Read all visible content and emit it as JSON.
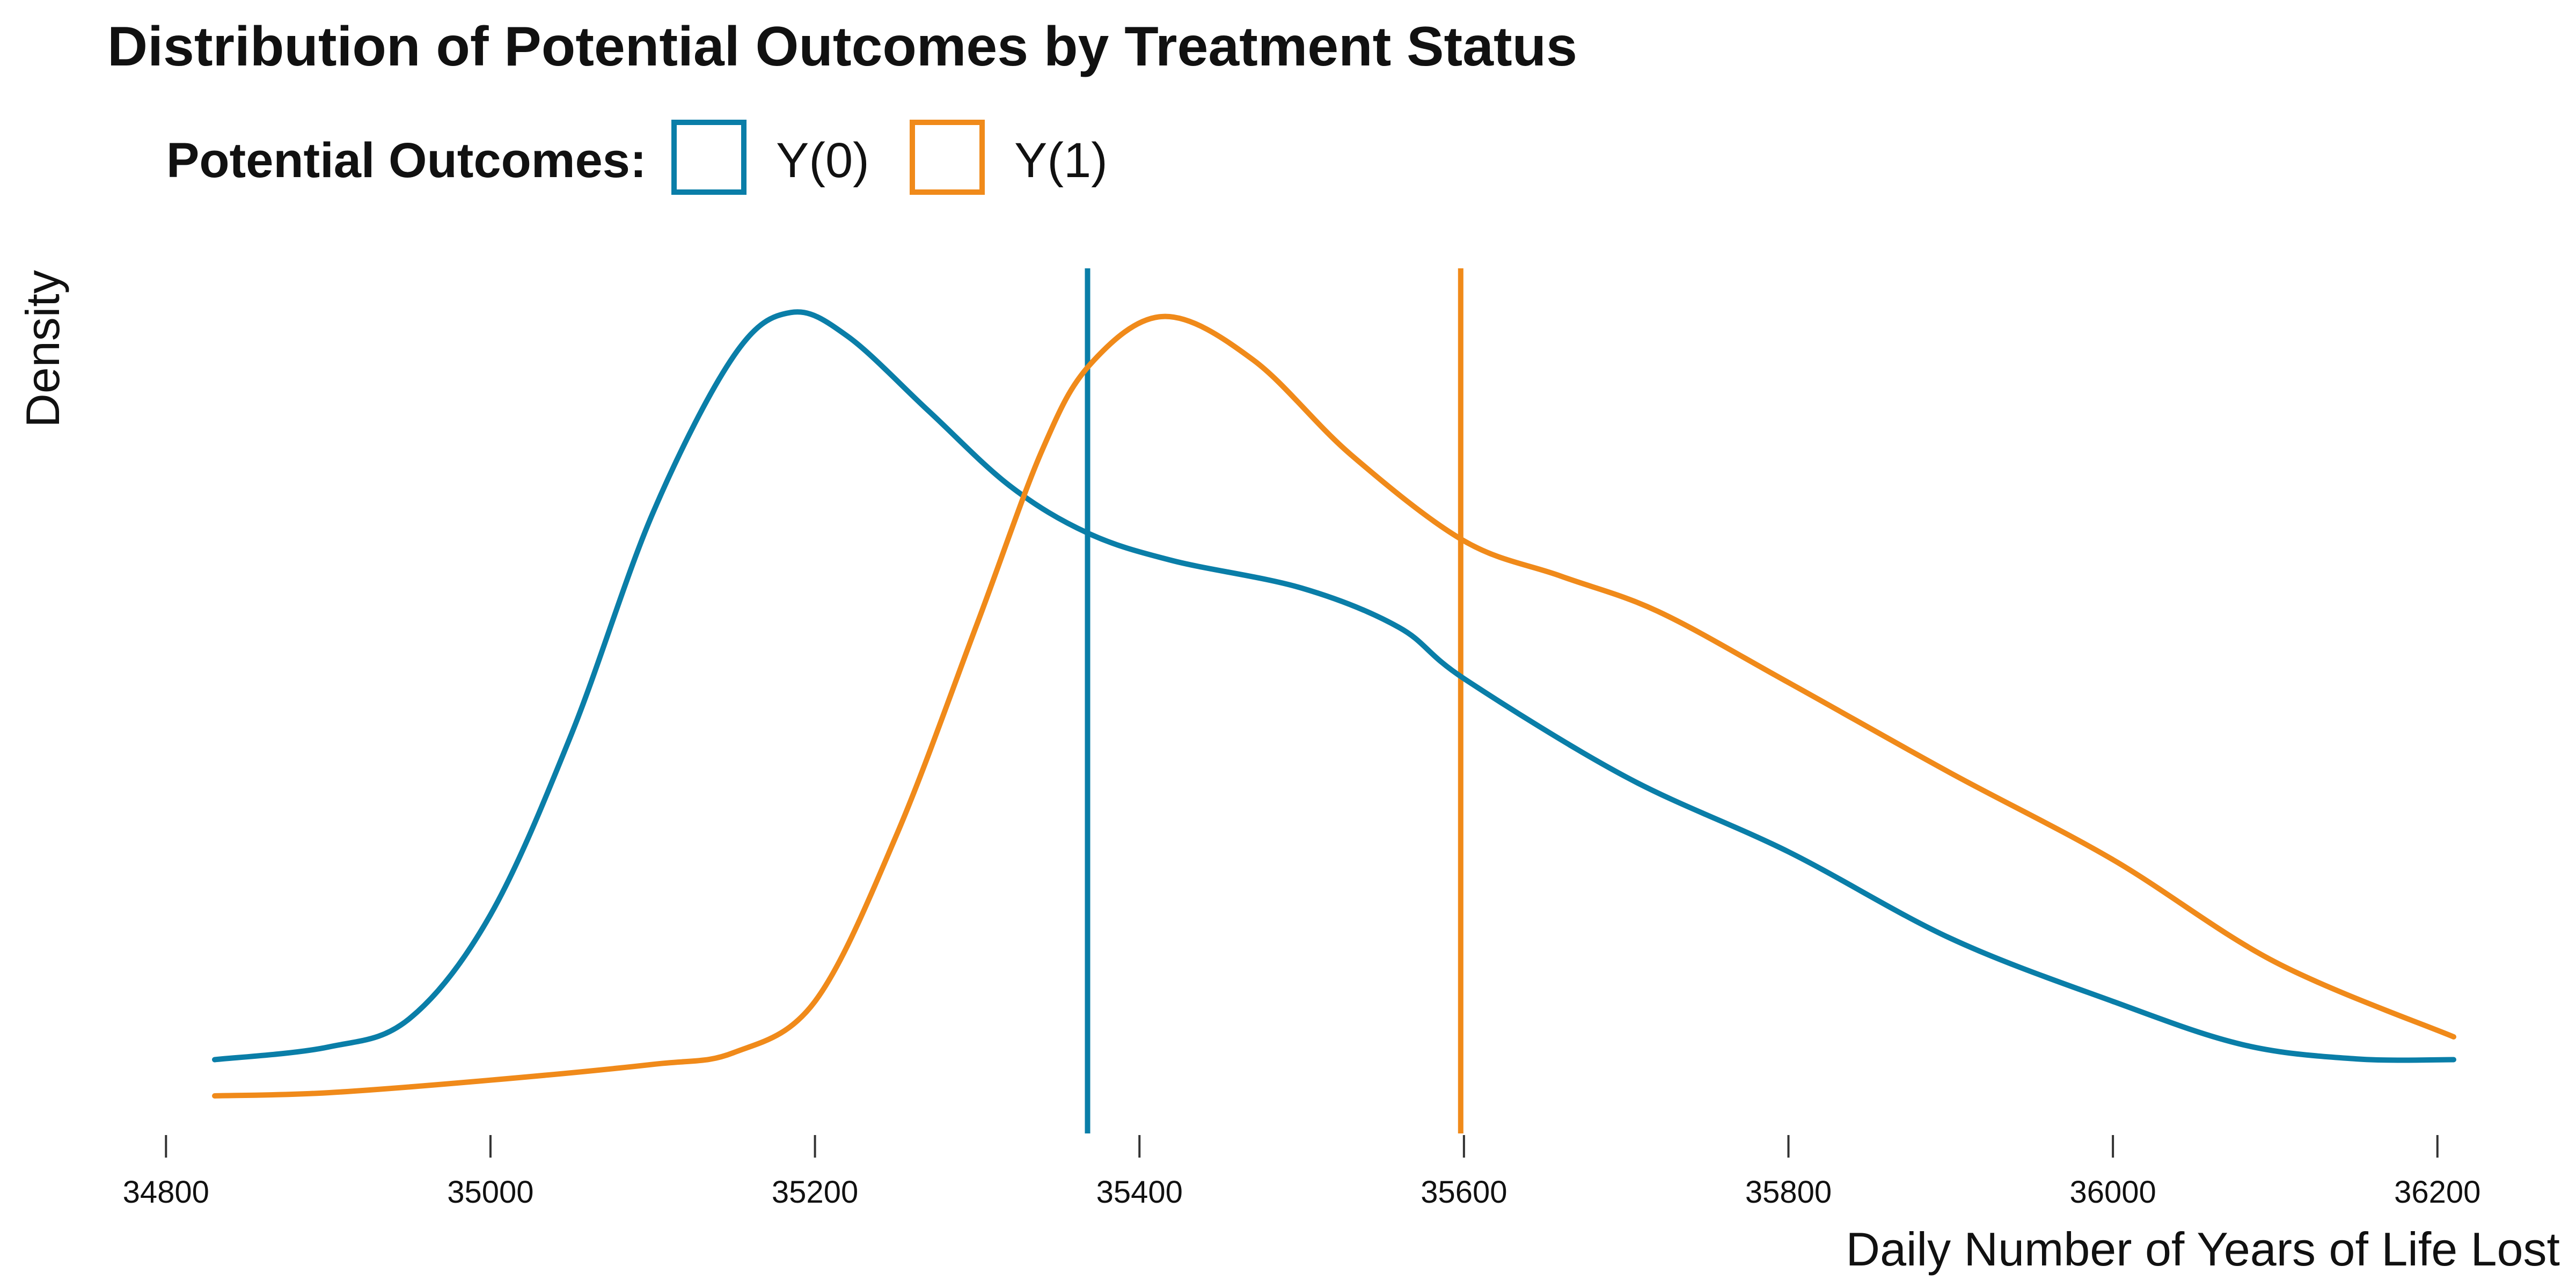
{
  "chart_data": {
    "type": "line",
    "title": "Distribution of Potential Outcomes by Treatment Status",
    "legend": {
      "title": "Potential Outcomes:",
      "placement": "top-left"
    },
    "xlabel": "Daily Number of Years of Life Lost",
    "ylabel": "Density",
    "xlim": [
      34830,
      36210
    ],
    "ylim": [
      0,
      1
    ],
    "x_ticks": [
      34800,
      35000,
      35200,
      35400,
      35600,
      35800,
      36000,
      36200
    ],
    "x_tick_labels": [
      "34800",
      "35000",
      "35200",
      "35400",
      "35600",
      "35800",
      "36000",
      "36200"
    ],
    "grid": false,
    "series": [
      {
        "name": "Y(0)",
        "color": "#0a7ea8",
        "mean_line": 35368,
        "points": [
          [
            34830,
            0.046
          ],
          [
            34900,
            0.062
          ],
          [
            34950,
            0.098
          ],
          [
            35000,
            0.23
          ],
          [
            35050,
            0.46
          ],
          [
            35100,
            0.74
          ],
          [
            35150,
            0.94
          ],
          [
            35185,
            0.995
          ],
          [
            35220,
            0.965
          ],
          [
            35270,
            0.87
          ],
          [
            35320,
            0.775
          ],
          [
            35368,
            0.715
          ],
          [
            35420,
            0.68
          ],
          [
            35500,
            0.645
          ],
          [
            35560,
            0.595
          ],
          [
            35600,
            0.53
          ],
          [
            35700,
            0.405
          ],
          [
            35800,
            0.31
          ],
          [
            35900,
            0.2
          ],
          [
            36000,
            0.12
          ],
          [
            36080,
            0.065
          ],
          [
            36150,
            0.047
          ],
          [
            36210,
            0.046
          ]
        ]
      },
      {
        "name": "Y(1)",
        "color": "#f08a1a",
        "mean_line": 35598,
        "points": [
          [
            34830,
            0.0
          ],
          [
            34900,
            0.004
          ],
          [
            35000,
            0.02
          ],
          [
            35100,
            0.04
          ],
          [
            35150,
            0.055
          ],
          [
            35200,
            0.12
          ],
          [
            35250,
            0.33
          ],
          [
            35300,
            0.6
          ],
          [
            35340,
            0.82
          ],
          [
            35370,
            0.93
          ],
          [
            35415,
            0.99
          ],
          [
            35470,
            0.935
          ],
          [
            35530,
            0.815
          ],
          [
            35600,
            0.705
          ],
          [
            35660,
            0.66
          ],
          [
            35720,
            0.615
          ],
          [
            35800,
            0.525
          ],
          [
            35900,
            0.41
          ],
          [
            36000,
            0.3
          ],
          [
            36100,
            0.17
          ],
          [
            36210,
            0.075
          ]
        ]
      }
    ]
  }
}
